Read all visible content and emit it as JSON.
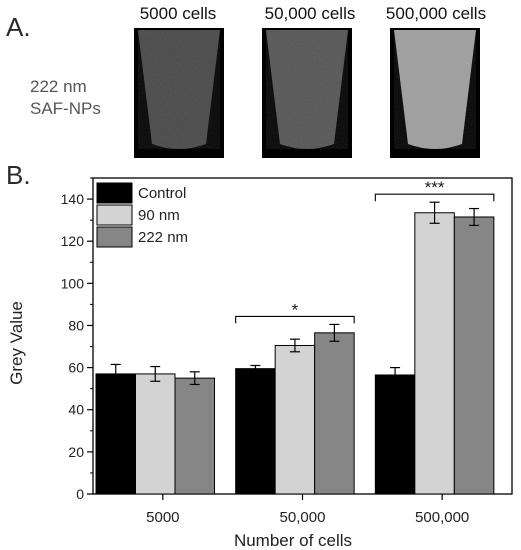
{
  "panel_a": {
    "label": "A.",
    "row_label_line1": "222 nm",
    "row_label_line2": "SAF-NPs",
    "columns": [
      "5000 cells",
      "50,000 cells",
      "500,000 cells"
    ],
    "tube_brightness": [
      0.28,
      0.33,
      0.62
    ]
  },
  "panel_b": {
    "label": "B."
  },
  "chart_data": {
    "type": "bar",
    "xlabel": "Number of cells",
    "ylabel": "Grey Value",
    "ylim": [
      0,
      150
    ],
    "yticks": [
      0,
      20,
      40,
      60,
      80,
      100,
      120,
      140
    ],
    "categories": [
      "5000",
      "50,000",
      "500,000"
    ],
    "legend_position": "top-left",
    "grid": false,
    "series": [
      {
        "name": "Control",
        "color": "#000000",
        "values": [
          57,
          59.5,
          56.5
        ],
        "errors": [
          4.5,
          1.5,
          3.5
        ]
      },
      {
        "name": "90 nm",
        "color": "#d3d3d3",
        "values": [
          57,
          70.5,
          133.5
        ],
        "errors": [
          3.5,
          3,
          5
        ]
      },
      {
        "name": "222 nm",
        "color": "#868686",
        "values": [
          55,
          76.5,
          131.5
        ],
        "errors": [
          3,
          4,
          4
        ]
      }
    ],
    "significance": [
      {
        "category": "50,000",
        "label": "*"
      },
      {
        "category": "500,000",
        "label": "***"
      }
    ]
  }
}
